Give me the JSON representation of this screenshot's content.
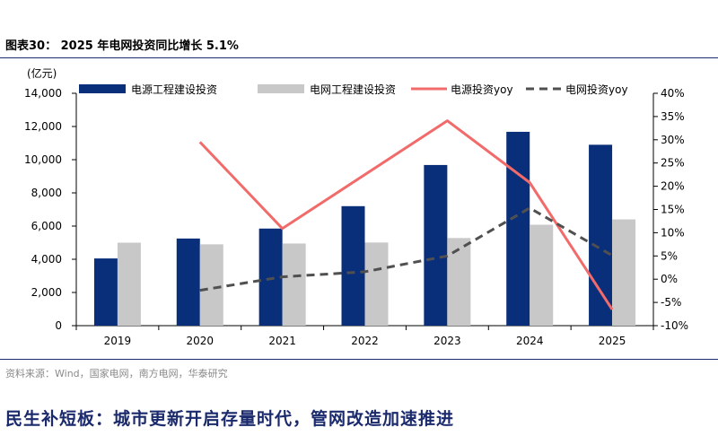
{
  "figure": {
    "title": "图表30： 2025 年电网投资同比增长 5.1%",
    "unit": "(亿元)",
    "source": "资料来源：Wind，国家电网，南方电网，华泰研究",
    "note": "民生补短板：城市更新开启存量时代，管网改造加速推进"
  },
  "chart_data": {
    "type": "bar",
    "categories": [
      "2019",
      "2020",
      "2021",
      "2022",
      "2023",
      "2024",
      "2025"
    ],
    "series": [
      {
        "name": "电源工程建设投资",
        "type": "bar",
        "axis": "left",
        "color": "#0a2f7a",
        "values": [
          4050,
          5250,
          5850,
          7200,
          9680,
          11680,
          10900
        ]
      },
      {
        "name": "电网工程建设投资",
        "type": "bar",
        "axis": "left",
        "color": "#c8c8c8",
        "values": [
          5000,
          4900,
          4950,
          5010,
          5280,
          6080,
          6400
        ]
      },
      {
        "name": "电源投资yoy",
        "type": "line",
        "axis": "right",
        "color": "#f26b6b",
        "style": "solid",
        "values": [
          null,
          29.5,
          10.9,
          null,
          34.1,
          20.8,
          -6.5
        ]
      },
      {
        "name": "电网投资yoy",
        "type": "line",
        "axis": "right",
        "color": "#505050",
        "style": "dashed",
        "values": [
          null,
          -2.4,
          0.5,
          1.6,
          5.0,
          15.3,
          5.1
        ]
      }
    ],
    "y_left": {
      "min": 0,
      "max": 14000,
      "ticks": [
        "0",
        "2,000",
        "4,000",
        "6,000",
        "8,000",
        "10,000",
        "12,000",
        "14,000"
      ]
    },
    "y_right": {
      "min": -10,
      "max": 40,
      "ticks": [
        "-10%",
        "-5%",
        "0%",
        "5%",
        "10%",
        "15%",
        "20%",
        "25%",
        "30%",
        "35%",
        "40%"
      ]
    },
    "grid": false,
    "legend_position": "top"
  }
}
